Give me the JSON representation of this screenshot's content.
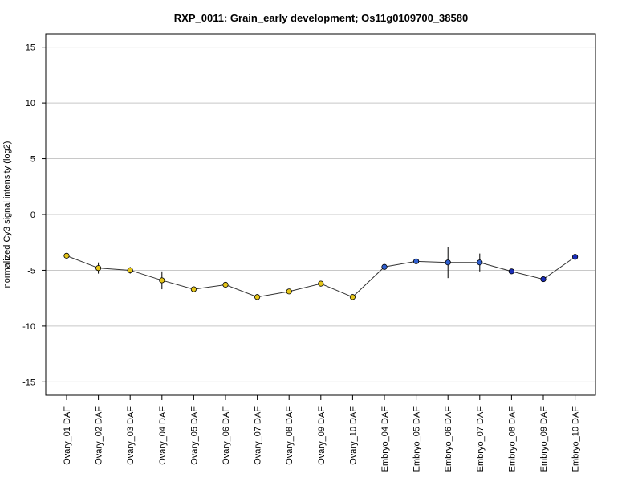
{
  "chart_data": {
    "type": "line",
    "title": "RXP_0011: Grain_early development; Os11g0109700_38580",
    "ylabel": "normalized Cy3 signal intensity (log2)",
    "xlabel": "",
    "ylim": [
      -16.2,
      16.2
    ],
    "yticks": [
      -15,
      -10,
      -5,
      0,
      5,
      10,
      15
    ],
    "grid": "horizontal",
    "categories": [
      "Ovary_01 DAF",
      "Ovary_02 DAF",
      "Ovary_03 DAF",
      "Ovary_04 DAF",
      "Ovary_05 DAF",
      "Ovary_06 DAF",
      "Ovary_07 DAF",
      "Ovary_08 DAF",
      "Ovary_09 DAF",
      "Ovary_10 DAF",
      "Embryo_04 DAF",
      "Embryo_05 DAF",
      "Embryo_06 DAF",
      "Embryo_07 DAF",
      "Embryo_08 DAF",
      "Embryo_09 DAF",
      "Embryo_10 DAF"
    ],
    "values": [
      -3.7,
      -4.8,
      -5.0,
      -5.9,
      -6.7,
      -6.3,
      -7.4,
      -6.9,
      -6.2,
      -7.4,
      -4.7,
      -4.2,
      -4.3,
      -4.3,
      -5.1,
      -5.8,
      -3.8
    ],
    "error": [
      0.2,
      0.5,
      0.3,
      0.8,
      0.1,
      0.1,
      0.2,
      0.1,
      0.1,
      0.1,
      0.1,
      0.1,
      1.4,
      0.8,
      0.1,
      0.1,
      0.1
    ],
    "point_colors": [
      "#e6c619",
      "#e6c619",
      "#e6c619",
      "#e6c619",
      "#e6c619",
      "#e6c619",
      "#e6c619",
      "#e6c619",
      "#e6c619",
      "#e6c619",
      "#2f5fd0",
      "#2f5fd0",
      "#2f5fd0",
      "#2f5fd0",
      "#1a2db8",
      "#1a2db8",
      "#1a2db8"
    ]
  }
}
